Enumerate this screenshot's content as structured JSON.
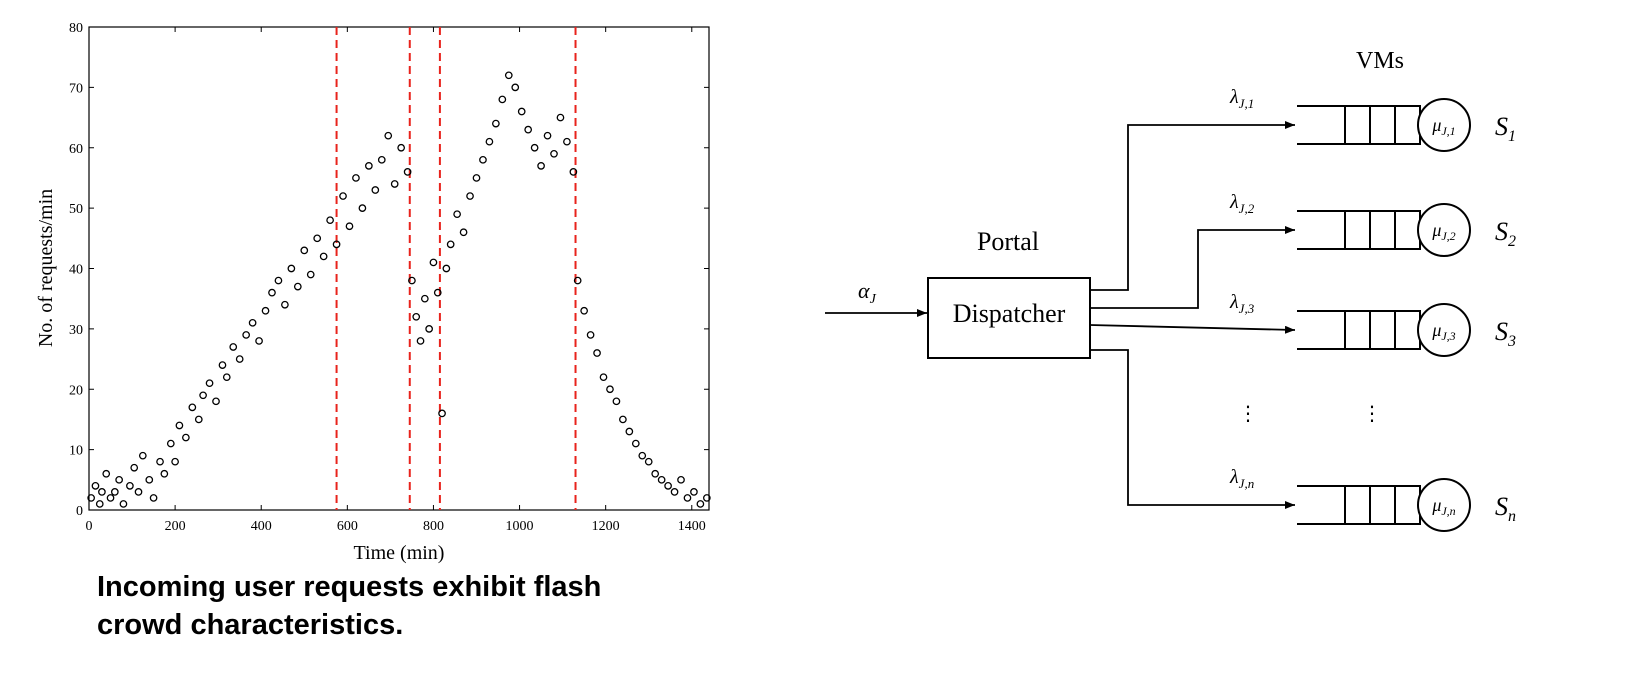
{
  "chart_data": {
    "type": "scatter",
    "xlabel": "Time (min)",
    "ylabel": "No. of requests/min",
    "xlim": [
      0,
      1440
    ],
    "ylim": [
      0,
      80
    ],
    "xticks": [
      0,
      200,
      400,
      600,
      800,
      1000,
      1200,
      1400
    ],
    "yticks": [
      0,
      10,
      20,
      30,
      40,
      50,
      60,
      70,
      80
    ],
    "xtick_labels": [
      "0",
      "200",
      "400",
      "600",
      "800",
      "1000",
      "1200",
      "1400"
    ],
    "ytick_labels": [
      "0",
      "10",
      "20",
      "30",
      "40",
      "50",
      "60",
      "70",
      "80"
    ],
    "vlines": [
      575,
      745,
      815,
      1130
    ],
    "vline_color": "#e8231c",
    "marker": "open-circle",
    "grid": false,
    "series": [
      {
        "points": [
          [
            5,
            2
          ],
          [
            15,
            4
          ],
          [
            25,
            1
          ],
          [
            30,
            3
          ],
          [
            40,
            6
          ],
          [
            50,
            2
          ],
          [
            60,
            3
          ],
          [
            70,
            5
          ],
          [
            80,
            1
          ],
          [
            95,
            4
          ],
          [
            105,
            7
          ],
          [
            115,
            3
          ],
          [
            125,
            9
          ],
          [
            140,
            5
          ],
          [
            150,
            2
          ],
          [
            165,
            8
          ],
          [
            175,
            6
          ],
          [
            190,
            11
          ],
          [
            200,
            8
          ],
          [
            210,
            14
          ],
          [
            225,
            12
          ],
          [
            240,
            17
          ],
          [
            255,
            15
          ],
          [
            265,
            19
          ],
          [
            280,
            21
          ],
          [
            295,
            18
          ],
          [
            310,
            24
          ],
          [
            320,
            22
          ],
          [
            335,
            27
          ],
          [
            350,
            25
          ],
          [
            365,
            29
          ],
          [
            380,
            31
          ],
          [
            395,
            28
          ],
          [
            410,
            33
          ],
          [
            425,
            36
          ],
          [
            440,
            38
          ],
          [
            455,
            34
          ],
          [
            470,
            40
          ],
          [
            485,
            37
          ],
          [
            500,
            43
          ],
          [
            515,
            39
          ],
          [
            530,
            45
          ],
          [
            545,
            42
          ],
          [
            560,
            48
          ],
          [
            575,
            44
          ],
          [
            590,
            52
          ],
          [
            605,
            47
          ],
          [
            620,
            55
          ],
          [
            635,
            50
          ],
          [
            650,
            57
          ],
          [
            665,
            53
          ],
          [
            680,
            58
          ],
          [
            695,
            62
          ],
          [
            710,
            54
          ],
          [
            725,
            60
          ],
          [
            740,
            56
          ],
          [
            750,
            38
          ],
          [
            760,
            32
          ],
          [
            770,
            28
          ],
          [
            780,
            35
          ],
          [
            790,
            30
          ],
          [
            800,
            41
          ],
          [
            810,
            36
          ],
          [
            820,
            16
          ],
          [
            830,
            40
          ],
          [
            840,
            44
          ],
          [
            855,
            49
          ],
          [
            870,
            46
          ],
          [
            885,
            52
          ],
          [
            900,
            55
          ],
          [
            915,
            58
          ],
          [
            930,
            61
          ],
          [
            945,
            64
          ],
          [
            960,
            68
          ],
          [
            975,
            72
          ],
          [
            990,
            70
          ],
          [
            1005,
            66
          ],
          [
            1020,
            63
          ],
          [
            1035,
            60
          ],
          [
            1050,
            57
          ],
          [
            1065,
            62
          ],
          [
            1080,
            59
          ],
          [
            1095,
            65
          ],
          [
            1110,
            61
          ],
          [
            1125,
            56
          ],
          [
            1135,
            38
          ],
          [
            1150,
            33
          ],
          [
            1165,
            29
          ],
          [
            1180,
            26
          ],
          [
            1195,
            22
          ],
          [
            1210,
            20
          ],
          [
            1225,
            18
          ],
          [
            1240,
            15
          ],
          [
            1255,
            13
          ],
          [
            1270,
            11
          ],
          [
            1285,
            9
          ],
          [
            1300,
            8
          ],
          [
            1315,
            6
          ],
          [
            1330,
            5
          ],
          [
            1345,
            4
          ],
          [
            1360,
            3
          ],
          [
            1375,
            5
          ],
          [
            1390,
            2
          ],
          [
            1405,
            3
          ],
          [
            1420,
            1
          ],
          [
            1435,
            2
          ]
        ]
      }
    ]
  },
  "caption": {
    "line1": "Incoming user requests exhibit flash",
    "line2": "crowd characteristics."
  },
  "diagram": {
    "title_vms": "VMs",
    "portal_label": "Portal",
    "dispatcher_label": "Dispatcher",
    "input_label": {
      "main": "α",
      "sub": "J"
    },
    "dots": "⋮",
    "rows": [
      {
        "lambda_main": "λ",
        "lambda_sub": "J,1",
        "mu_main": "μ",
        "mu_sub": "J,1",
        "server_main": "S",
        "server_sub": "1"
      },
      {
        "lambda_main": "λ",
        "lambda_sub": "J,2",
        "mu_main": "μ",
        "mu_sub": "J,2",
        "server_main": "S",
        "server_sub": "2"
      },
      {
        "lambda_main": "λ",
        "lambda_sub": "J,3",
        "mu_main": "μ",
        "mu_sub": "J,3",
        "server_main": "S",
        "server_sub": "3"
      },
      {
        "lambda_main": "λ",
        "lambda_sub": "J,n",
        "mu_main": "μ",
        "mu_sub": "J,n",
        "server_main": "S",
        "server_sub": "n"
      }
    ]
  }
}
